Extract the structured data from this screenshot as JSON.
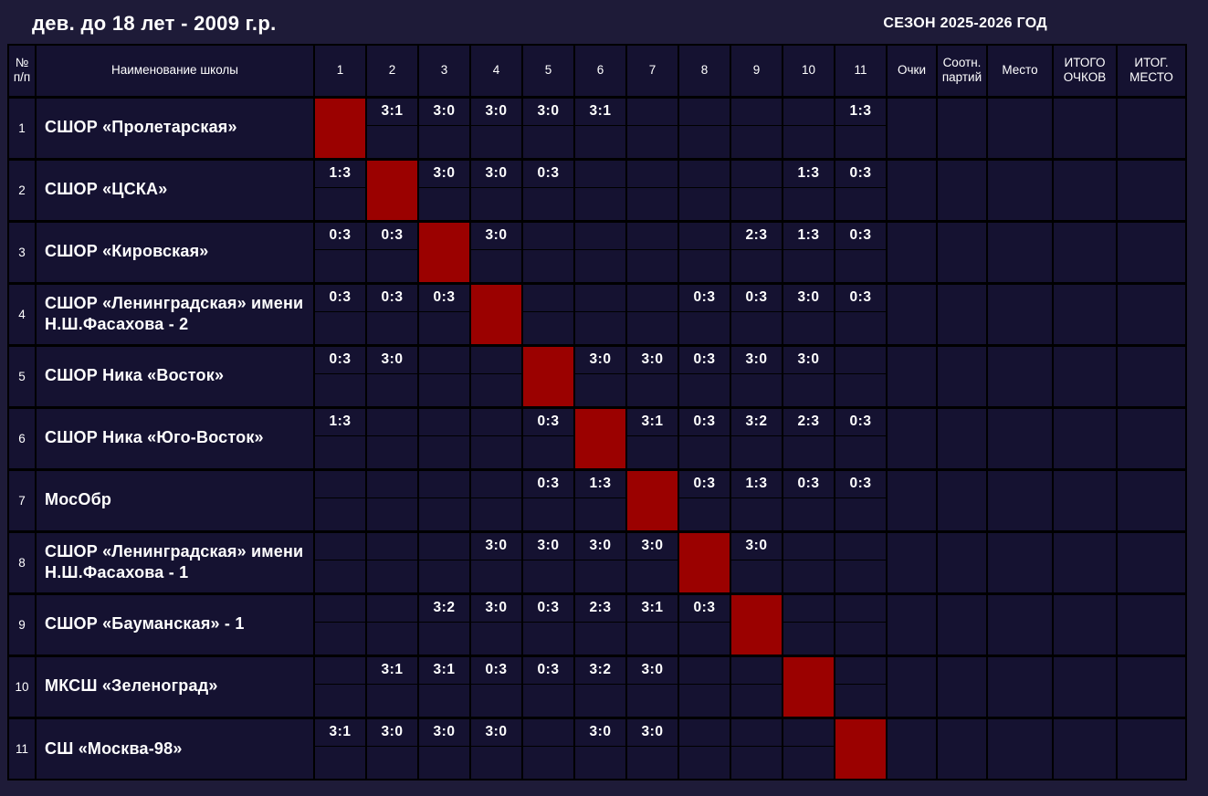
{
  "page": {
    "title": "дев. до 18 лет - 2009 г.р.",
    "season": "СЕЗОН 2025-2026 ГОД"
  },
  "colors": {
    "background": "#1e1b38",
    "cell_background": "#151231",
    "grid_line": "#000000",
    "diagonal_cell": "#9b0100",
    "text": "#ffffff"
  },
  "table": {
    "headers": {
      "num": "№ п/п",
      "school": "Наименование школы",
      "rounds": [
        "1",
        "2",
        "3",
        "4",
        "5",
        "6",
        "7",
        "8",
        "9",
        "10",
        "11"
      ],
      "points": "Очки",
      "set_ratio": "Соотн. партий",
      "place": "Место",
      "total_points": "ИТОГО ОЧКОВ",
      "final_place": "ИТОГ. МЕСТО"
    },
    "teams": [
      {
        "num": "1",
        "name": "СШОР «Пролетарская»",
        "results": [
          "",
          "3:1",
          "3:0",
          "3:0",
          "3:0",
          "3:1",
          "",
          "",
          "",
          "",
          "1:3"
        ],
        "points": "",
        "set_ratio": "",
        "place": "",
        "total_points": "",
        "final_place": ""
      },
      {
        "num": "2",
        "name": "СШОР «ЦСКА»",
        "results": [
          "1:3",
          "",
          "3:0",
          "3:0",
          "0:3",
          "",
          "",
          "",
          "",
          "1:3",
          "0:3"
        ],
        "points": "",
        "set_ratio": "",
        "place": "",
        "total_points": "",
        "final_place": ""
      },
      {
        "num": "3",
        "name": "СШОР «Кировская»",
        "results": [
          "0:3",
          "0:3",
          "",
          "3:0",
          "",
          "",
          "",
          "",
          "2:3",
          "1:3",
          "0:3"
        ],
        "points": "",
        "set_ratio": "",
        "place": "",
        "total_points": "",
        "final_place": ""
      },
      {
        "num": "4",
        "name": "СШОР «Ленинградская» имени Н.Ш.Фасахова - 2",
        "results": [
          "0:3",
          "0:3",
          "0:3",
          "",
          "",
          "",
          "",
          "0:3",
          "0:3",
          "3:0",
          "0:3"
        ],
        "points": "",
        "set_ratio": "",
        "place": "",
        "total_points": "",
        "final_place": ""
      },
      {
        "num": "5",
        "name": "СШОР Ника «Восток»",
        "results": [
          "0:3",
          "3:0",
          "",
          "",
          "",
          "3:0",
          "3:0",
          "0:3",
          "3:0",
          "3:0",
          ""
        ],
        "points": "",
        "set_ratio": "",
        "place": "",
        "total_points": "",
        "final_place": ""
      },
      {
        "num": "6",
        "name": "СШОР Ника «Юго-Восток»",
        "results": [
          "1:3",
          "",
          "",
          "",
          "0:3",
          "",
          "3:1",
          "0:3",
          "3:2",
          "2:3",
          "0:3"
        ],
        "points": "",
        "set_ratio": "",
        "place": "",
        "total_points": "",
        "final_place": ""
      },
      {
        "num": "7",
        "name": "МосОбр",
        "results": [
          "",
          "",
          "",
          "",
          "0:3",
          "1:3",
          "",
          "0:3",
          "1:3",
          "0:3",
          "0:3"
        ],
        "points": "",
        "set_ratio": "",
        "place": "",
        "total_points": "",
        "final_place": ""
      },
      {
        "num": "8",
        "name": "СШОР «Ленинградская» имени Н.Ш.Фасахова - 1",
        "results": [
          "",
          "",
          "",
          "3:0",
          "3:0",
          "3:0",
          "3:0",
          "",
          "3:0",
          "",
          ""
        ],
        "points": "",
        "set_ratio": "",
        "place": "",
        "total_points": "",
        "final_place": ""
      },
      {
        "num": "9",
        "name": "СШОР «Бауманская» - 1",
        "results": [
          "",
          "",
          "3:2",
          "3:0",
          "0:3",
          "2:3",
          "3:1",
          "0:3",
          "",
          "",
          ""
        ],
        "points": "",
        "set_ratio": "",
        "place": "",
        "total_points": "",
        "final_place": ""
      },
      {
        "num": "10",
        "name": "МКСШ «Зеленоград»",
        "results": [
          "",
          "3:1",
          "3:1",
          "0:3",
          "0:3",
          "3:2",
          "3:0",
          "",
          "",
          "",
          ""
        ],
        "points": "",
        "set_ratio": "",
        "place": "",
        "total_points": "",
        "final_place": ""
      },
      {
        "num": "11",
        "name": "СШ «Москва-98»",
        "results": [
          "3:1",
          "3:0",
          "3:0",
          "3:0",
          "",
          "3:0",
          "3:0",
          "",
          "",
          "",
          ""
        ],
        "points": "",
        "set_ratio": "",
        "place": "",
        "total_points": "",
        "final_place": ""
      }
    ]
  }
}
